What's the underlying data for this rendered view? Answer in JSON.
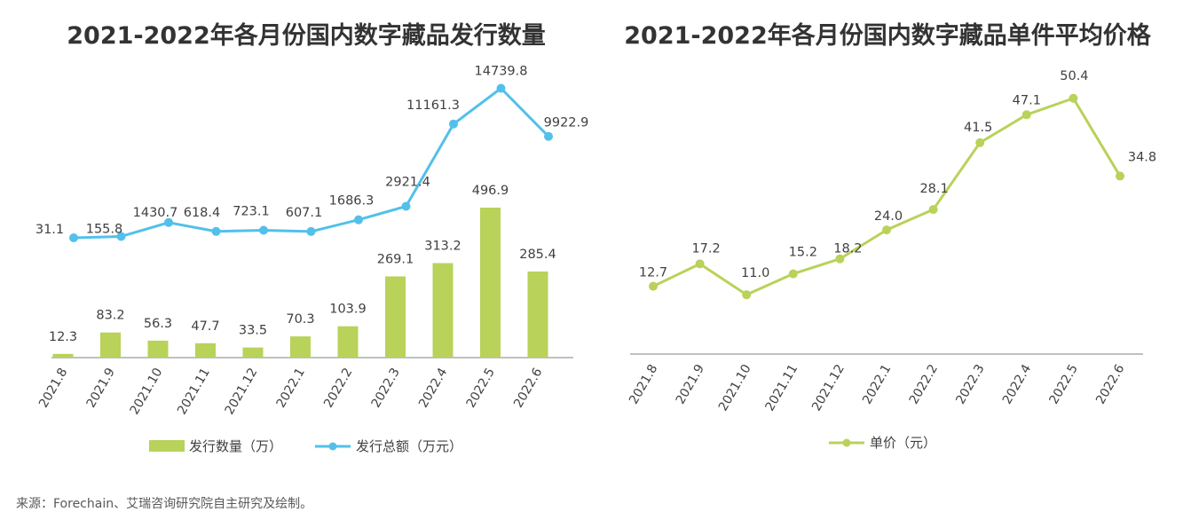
{
  "chart_data": [
    {
      "type": "bar+line",
      "title": "2021-2022年各月份国内数字藏品发行数量",
      "categories": [
        "2021.8",
        "2021.9",
        "2021.10",
        "2021.11",
        "2021.12",
        "2022.1",
        "2022.2",
        "2022.3",
        "2022.4",
        "2022.5",
        "2022.6"
      ],
      "series": [
        {
          "name": "发行数量（万）",
          "kind": "bar",
          "color": "#b8d25a",
          "values": [
            12.3,
            83.2,
            56.3,
            47.7,
            33.5,
            70.3,
            103.9,
            269.1,
            313.2,
            496.9,
            285.4
          ],
          "labels": [
            "12.3",
            "83.2",
            "56.3",
            "47.7",
            "33.5",
            "70.3",
            "103.9",
            "269.1",
            "313.2",
            "496.9",
            "285.4"
          ]
        },
        {
          "name": "发行总额（万元）",
          "kind": "line",
          "color": "#52c0ea",
          "values": [
            31.1,
            155.8,
            1430.7,
            618.4,
            723.1,
            607.1,
            1686.3,
            2921.4,
            11161.3,
            14739.8,
            9922.9
          ],
          "labels": [
            "31.1",
            "155.8",
            "1430.7",
            "618.4",
            "723.1",
            "607.1",
            "1686.3",
            "2921.4",
            "11161.3",
            "14739.8",
            "9922.9"
          ]
        }
      ]
    },
    {
      "type": "line",
      "title": "2021-2022年各月份国内数字藏品单件平均价格",
      "categories": [
        "2021.8",
        "2021.9",
        "2021.10",
        "2021.11",
        "2021.12",
        "2022.1",
        "2022.2",
        "2022.3",
        "2022.4",
        "2022.5",
        "2022.6"
      ],
      "series": [
        {
          "name": "单价（元）",
          "kind": "line",
          "color": "#b8d25a",
          "values": [
            12.7,
            17.2,
            11.0,
            15.2,
            18.2,
            24.0,
            28.1,
            41.5,
            47.1,
            50.4,
            34.8
          ],
          "labels": [
            "12.7",
            "17.2",
            "11.0",
            "15.2",
            "18.2",
            "24.0",
            "28.1",
            "41.5",
            "47.1",
            "50.4",
            "34.8"
          ]
        }
      ]
    }
  ],
  "source": "来源：Forechain、艾瑞咨询研究院自主研究及绘制。"
}
